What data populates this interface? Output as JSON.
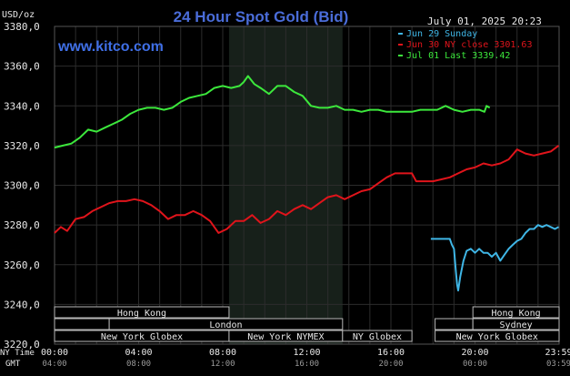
{
  "header": {
    "title": "24 Hour Spot Gold (Bid)",
    "unit": "USD/oz",
    "website": "www.kitco.com",
    "datetime": "July 01, 2025 20:23"
  },
  "chart_data": {
    "type": "line",
    "title": "24 Hour Spot Gold (Bid)",
    "ylabel": "USD/oz",
    "ylim": [
      3220,
      3380
    ],
    "yticks": [
      "3380,0",
      "3360,0",
      "3340,0",
      "3320,0",
      "3300,0",
      "3280,0",
      "3260,0",
      "3240,0",
      "3220,0"
    ],
    "xlim": [
      0,
      24
    ],
    "x_ticks_ny": [
      "00:00",
      "04:00",
      "08:00",
      "12:00",
      "16:00",
      "20:00",
      "23:59"
    ],
    "x_ticks_gmt": [
      "04:00",
      "08:00",
      "12:00",
      "16:00",
      "20:00",
      "00:00",
      "03:59"
    ],
    "x_axis_labels": {
      "ny": "NY Time",
      "gmt": "GMT"
    },
    "grid": true,
    "legend_position": "top-right",
    "highlight_band": {
      "label": "New York NYMEX",
      "start": 8.3,
      "end": 13.7
    },
    "series": [
      {
        "name": "Jun 29 Sunday",
        "color": "#3fb6e6",
        "points": [
          [
            17.9,
            3273
          ],
          [
            18.4,
            3273
          ],
          [
            18.8,
            3273
          ],
          [
            18.9,
            3270
          ],
          [
            19.0,
            3268
          ],
          [
            19.08,
            3258
          ],
          [
            19.15,
            3250
          ],
          [
            19.2,
            3247
          ],
          [
            19.3,
            3254
          ],
          [
            19.45,
            3262
          ],
          [
            19.6,
            3267
          ],
          [
            19.8,
            3268
          ],
          [
            20.0,
            3266
          ],
          [
            20.2,
            3268
          ],
          [
            20.4,
            3266
          ],
          [
            20.6,
            3266
          ],
          [
            20.8,
            3264
          ],
          [
            21.0,
            3266
          ],
          [
            21.2,
            3262
          ],
          [
            21.4,
            3265
          ],
          [
            21.6,
            3268
          ],
          [
            21.8,
            3270
          ],
          [
            22.0,
            3272
          ],
          [
            22.2,
            3273
          ],
          [
            22.4,
            3276
          ],
          [
            22.6,
            3278
          ],
          [
            22.8,
            3278
          ],
          [
            23.0,
            3280
          ],
          [
            23.2,
            3279
          ],
          [
            23.4,
            3280
          ],
          [
            23.6,
            3279
          ],
          [
            23.8,
            3278
          ],
          [
            23.98,
            3279
          ]
        ]
      },
      {
        "name": "Jun 30 NY close 3301.63",
        "color": "#e0141b",
        "points": [
          [
            0,
            3276
          ],
          [
            0.3,
            3279
          ],
          [
            0.6,
            3277
          ],
          [
            1.0,
            3283
          ],
          [
            1.4,
            3284
          ],
          [
            1.8,
            3287
          ],
          [
            2.2,
            3289
          ],
          [
            2.6,
            3291
          ],
          [
            3.0,
            3292
          ],
          [
            3.4,
            3292
          ],
          [
            3.8,
            3293
          ],
          [
            4.2,
            3292
          ],
          [
            4.6,
            3290
          ],
          [
            5.0,
            3287
          ],
          [
            5.4,
            3283
          ],
          [
            5.8,
            3285
          ],
          [
            6.2,
            3285
          ],
          [
            6.6,
            3287
          ],
          [
            7.0,
            3285
          ],
          [
            7.4,
            3282
          ],
          [
            7.8,
            3276
          ],
          [
            8.2,
            3278
          ],
          [
            8.6,
            3282
          ],
          [
            9.0,
            3282
          ],
          [
            9.4,
            3285
          ],
          [
            9.8,
            3281
          ],
          [
            10.2,
            3283
          ],
          [
            10.6,
            3287
          ],
          [
            11.0,
            3285
          ],
          [
            11.4,
            3288
          ],
          [
            11.8,
            3290
          ],
          [
            12.2,
            3288
          ],
          [
            12.6,
            3291
          ],
          [
            13.0,
            3294
          ],
          [
            13.4,
            3295
          ],
          [
            13.8,
            3293
          ],
          [
            14.2,
            3295
          ],
          [
            14.6,
            3297
          ],
          [
            15.0,
            3298
          ],
          [
            15.4,
            3301
          ],
          [
            15.8,
            3304
          ],
          [
            16.2,
            3306
          ],
          [
            16.6,
            3306
          ],
          [
            17.0,
            3306
          ],
          [
            17.2,
            3302
          ],
          [
            17.6,
            3302
          ],
          [
            18.0,
            3302
          ],
          [
            18.4,
            3303
          ],
          [
            18.8,
            3304
          ],
          [
            19.2,
            3306
          ],
          [
            19.6,
            3308
          ],
          [
            20.0,
            3309
          ],
          [
            20.4,
            3311
          ],
          [
            20.8,
            3310
          ],
          [
            21.2,
            3311
          ],
          [
            21.6,
            3313
          ],
          [
            22.0,
            3318
          ],
          [
            22.4,
            3316
          ],
          [
            22.8,
            3315
          ],
          [
            23.2,
            3316
          ],
          [
            23.6,
            3317
          ],
          [
            23.98,
            3320
          ]
        ]
      },
      {
        "name": "Jul 01 Last 3339.42",
        "color": "#3ce83c",
        "points": [
          [
            0,
            3319
          ],
          [
            0.4,
            3320
          ],
          [
            0.8,
            3321
          ],
          [
            1.2,
            3324
          ],
          [
            1.6,
            3328
          ],
          [
            2.0,
            3327
          ],
          [
            2.4,
            3329
          ],
          [
            2.8,
            3331
          ],
          [
            3.2,
            3333
          ],
          [
            3.6,
            3336
          ],
          [
            4.0,
            3338
          ],
          [
            4.4,
            3339
          ],
          [
            4.8,
            3339
          ],
          [
            5.2,
            3338
          ],
          [
            5.6,
            3339
          ],
          [
            6.0,
            3342
          ],
          [
            6.4,
            3344
          ],
          [
            6.8,
            3345
          ],
          [
            7.2,
            3346
          ],
          [
            7.6,
            3349
          ],
          [
            8.0,
            3350
          ],
          [
            8.4,
            3349
          ],
          [
            8.8,
            3350
          ],
          [
            9.0,
            3352
          ],
          [
            9.2,
            3355
          ],
          [
            9.5,
            3351
          ],
          [
            9.8,
            3349
          ],
          [
            10.2,
            3346
          ],
          [
            10.6,
            3350
          ],
          [
            11.0,
            3350
          ],
          [
            11.4,
            3347
          ],
          [
            11.8,
            3345
          ],
          [
            12.2,
            3340
          ],
          [
            12.6,
            3339
          ],
          [
            13.0,
            3339
          ],
          [
            13.4,
            3340
          ],
          [
            13.8,
            3338
          ],
          [
            14.2,
            3338
          ],
          [
            14.6,
            3337
          ],
          [
            15.0,
            3338
          ],
          [
            15.4,
            3338
          ],
          [
            15.8,
            3337
          ],
          [
            16.2,
            3337
          ],
          [
            16.6,
            3337
          ],
          [
            17.0,
            3337
          ],
          [
            17.4,
            3338
          ],
          [
            17.8,
            3338
          ],
          [
            18.2,
            3338
          ],
          [
            18.6,
            3340
          ],
          [
            19.0,
            3338
          ],
          [
            19.4,
            3337
          ],
          [
            19.8,
            3338
          ],
          [
            20.2,
            3338
          ],
          [
            20.45,
            3337
          ],
          [
            20.55,
            3340
          ],
          [
            20.7,
            3339
          ]
        ]
      }
    ]
  },
  "market_sessions": {
    "row1": [
      {
        "label": "Hong Kong",
        "start": 0,
        "end": 8.3
      },
      {
        "label": "Hong Kong",
        "start": 19.9,
        "end": 24
      }
    ],
    "row2": [
      {
        "label": "",
        "start": 0,
        "end": 2.6
      },
      {
        "label": "London",
        "start": 2.6,
        "end": 13.7
      },
      {
        "label": "",
        "start": 18.1,
        "end": 19.9
      },
      {
        "label": "Sydney",
        "start": 19.9,
        "end": 24
      }
    ],
    "row3": [
      {
        "label": "New York Globex",
        "start": 0,
        "end": 8.3
      },
      {
        "label": "New York NYMEX",
        "start": 8.3,
        "end": 13.7
      },
      {
        "label": "NY Globex",
        "start": 13.7,
        "end": 17.0
      },
      {
        "label": "New York Globex",
        "start": 18.1,
        "end": 24
      }
    ]
  }
}
